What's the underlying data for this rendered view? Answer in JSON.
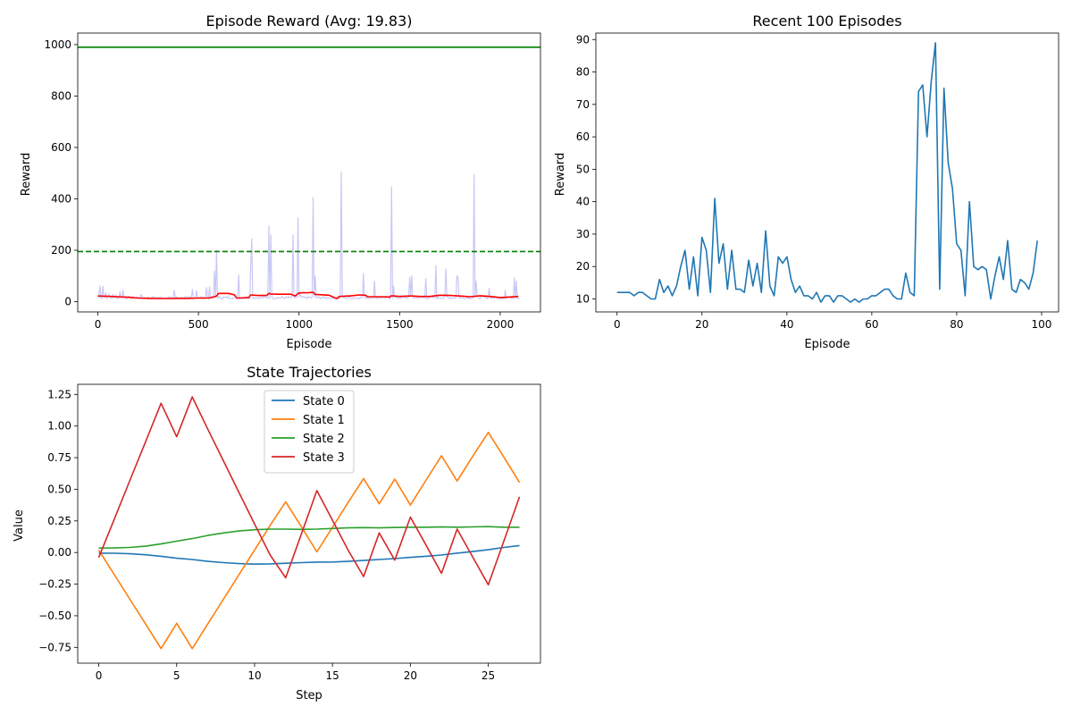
{
  "chart_data": [
    {
      "type": "line",
      "title": "Episode Reward (Avg: 19.83)",
      "xlabel": "Episode",
      "ylabel": "Reward",
      "xlim": [
        -100,
        2200
      ],
      "ylim": [
        -40,
        1045
      ],
      "xticks": [
        0,
        500,
        1000,
        1500,
        2000
      ],
      "yticks": [
        0,
        200,
        400,
        600,
        800,
        1000
      ],
      "reference_lines": [
        {
          "y": 990,
          "style": "solid",
          "color": "#008000"
        },
        {
          "y": 195,
          "style": "dashed",
          "color": "#008000"
        }
      ],
      "raw_series": {
        "color": "#c8c8f5",
        "base": 14,
        "spikes": [
          [
            10,
            62
          ],
          [
            25,
            60
          ],
          [
            40,
            35
          ],
          [
            55,
            30
          ],
          [
            75,
            28
          ],
          [
            90,
            25
          ],
          [
            110,
            38
          ],
          [
            125,
            44
          ],
          [
            150,
            20
          ],
          [
            200,
            18
          ],
          [
            215,
            28
          ],
          [
            300,
            15
          ],
          [
            380,
            45
          ],
          [
            470,
            48
          ],
          [
            490,
            42
          ],
          [
            540,
            55
          ],
          [
            555,
            58
          ],
          [
            580,
            120
          ],
          [
            590,
            200
          ],
          [
            700,
            105
          ],
          [
            760,
            150
          ],
          [
            765,
            245
          ],
          [
            850,
            295
          ],
          [
            860,
            260
          ],
          [
            970,
            260
          ],
          [
            995,
            325
          ],
          [
            1005,
            30
          ],
          [
            1070,
            405
          ],
          [
            1080,
            100
          ],
          [
            1210,
            505
          ],
          [
            1320,
            110
          ],
          [
            1375,
            80
          ],
          [
            1460,
            445
          ],
          [
            1470,
            60
          ],
          [
            1550,
            95
          ],
          [
            1560,
            100
          ],
          [
            1630,
            90
          ],
          [
            1680,
            140
          ],
          [
            1730,
            128
          ],
          [
            1785,
            100
          ],
          [
            1790,
            95
          ],
          [
            1870,
            495
          ],
          [
            1880,
            80
          ],
          [
            1945,
            52
          ],
          [
            2025,
            45
          ],
          [
            2070,
            92
          ],
          [
            2080,
            80
          ]
        ]
      },
      "moving_average": {
        "color": "#ff0000",
        "x": [
          0,
          50,
          100,
          150,
          200,
          250,
          300,
          350,
          400,
          450,
          500,
          550,
          575,
          590,
          600,
          650,
          680,
          690,
          700,
          750,
          760,
          790,
          840,
          850,
          860,
          900,
          960,
          980,
          1000,
          1050,
          1070,
          1080,
          1100,
          1150,
          1180,
          1190,
          1200,
          1240,
          1250,
          1300,
          1330,
          1340,
          1350,
          1400,
          1450,
          1460,
          1500,
          1550,
          1560,
          1600,
          1650,
          1700,
          1750,
          1800,
          1850,
          1900,
          1950,
          2000,
          2050,
          2090
        ],
        "y": [
          22,
          21,
          19,
          17,
          14,
          13,
          12,
          12,
          13,
          13,
          14,
          14,
          18,
          22,
          32,
          32,
          26,
          14,
          14,
          16,
          26,
          24,
          24,
          32,
          30,
          29,
          29,
          22,
          34,
          35,
          36,
          28,
          27,
          25,
          14,
          12,
          20,
          22,
          22,
          26,
          25,
          19,
          19,
          19,
          18,
          23,
          20,
          22,
          22,
          20,
          20,
          25,
          24,
          22,
          19,
          23,
          20,
          16,
          18,
          20
        ]
      }
    },
    {
      "type": "line",
      "title": "Recent 100 Episodes",
      "xlabel": "Episode",
      "ylabel": "Reward",
      "xlim": [
        -5,
        104
      ],
      "ylim": [
        6,
        92
      ],
      "xticks": [
        0,
        20,
        40,
        60,
        80,
        100
      ],
      "yticks": [
        10,
        20,
        30,
        40,
        50,
        60,
        70,
        80,
        90
      ],
      "series": [
        {
          "color": "#1f77b4",
          "values": [
            12,
            12,
            12,
            12,
            11,
            12,
            12,
            11,
            10,
            10,
            16,
            12,
            14,
            11,
            14,
            20,
            25,
            13,
            23,
            11,
            29,
            25,
            12,
            41,
            21,
            27,
            13,
            25,
            13,
            13,
            12,
            22,
            14,
            21,
            12,
            31,
            14,
            11,
            23,
            21,
            23,
            16,
            12,
            14,
            11,
            11,
            10,
            12,
            9,
            11,
            11,
            9,
            11,
            11,
            10,
            9,
            10,
            9,
            10,
            10,
            11,
            11,
            12,
            13,
            13,
            11,
            10,
            10,
            18,
            12,
            11,
            74,
            76,
            60,
            77,
            89,
            13,
            75,
            52,
            44,
            27,
            25,
            11,
            40,
            20,
            19,
            20,
            19,
            10,
            17,
            23,
            16,
            28,
            13,
            12,
            16,
            15,
            13,
            18,
            28
          ]
        }
      ]
    },
    {
      "type": "line",
      "title": "State Trajectories",
      "xlabel": "Step",
      "ylabel": "Value",
      "xlim": [
        -1.35,
        28.35
      ],
      "ylim": [
        -0.875,
        1.33
      ],
      "xticks": [
        0,
        5,
        10,
        15,
        20,
        25
      ],
      "yticks": [
        -0.75,
        -0.5,
        -0.25,
        0.0,
        0.25,
        0.5,
        0.75,
        1.0,
        1.25
      ],
      "ytick_labels": [
        "−0.75",
        "−0.50",
        "−0.25",
        "0.00",
        "0.25",
        "0.50",
        "0.75",
        "1.00",
        "1.25"
      ],
      "legend": "top-center",
      "x": [
        0,
        1,
        2,
        3,
        4,
        5,
        6,
        7,
        8,
        9,
        10,
        11,
        12,
        13,
        14,
        15,
        16,
        17,
        18,
        19,
        20,
        21,
        22,
        23,
        24,
        25,
        26,
        27
      ],
      "series": [
        {
          "name": "State 0",
          "color": "#1f77b4",
          "values": [
            -0.005,
            -0.006,
            -0.01,
            -0.018,
            -0.03,
            -0.045,
            -0.055,
            -0.07,
            -0.08,
            -0.088,
            -0.092,
            -0.09,
            -0.085,
            -0.08,
            -0.076,
            -0.075,
            -0.07,
            -0.063,
            -0.055,
            -0.048,
            -0.038,
            -0.03,
            -0.02,
            -0.005,
            0.008,
            0.022,
            0.04,
            0.055
          ]
        },
        {
          "name": "State 1",
          "color": "#ff7f0e",
          "values": [
            0.02,
            -0.175,
            -0.37,
            -0.565,
            -0.76,
            -0.56,
            -0.76,
            -0.565,
            -0.37,
            -0.175,
            0.02,
            0.215,
            0.4,
            0.205,
            0.005,
            0.2,
            0.395,
            0.585,
            0.385,
            0.58,
            0.375,
            0.57,
            0.765,
            0.565,
            0.76,
            0.95,
            0.755,
            0.555
          ]
        },
        {
          "name": "State 2",
          "color": "#2ca02c",
          "values": [
            0.035,
            0.036,
            0.04,
            0.05,
            0.068,
            0.09,
            0.11,
            0.135,
            0.155,
            0.17,
            0.18,
            0.185,
            0.185,
            0.183,
            0.185,
            0.19,
            0.195,
            0.197,
            0.195,
            0.198,
            0.2,
            0.2,
            0.202,
            0.2,
            0.203,
            0.205,
            0.2,
            0.2
          ]
        },
        {
          "name": "State 3",
          "color": "#d62728",
          "values": [
            -0.04,
            0.265,
            0.57,
            0.875,
            1.18,
            0.915,
            1.23,
            0.975,
            0.725,
            0.475,
            0.225,
            -0.02,
            -0.2,
            0.145,
            0.49,
            0.255,
            0.02,
            -0.19,
            0.155,
            -0.06,
            0.28,
            0.06,
            -0.165,
            0.185,
            -0.035,
            -0.255,
            0.09,
            0.44
          ]
        }
      ]
    }
  ]
}
